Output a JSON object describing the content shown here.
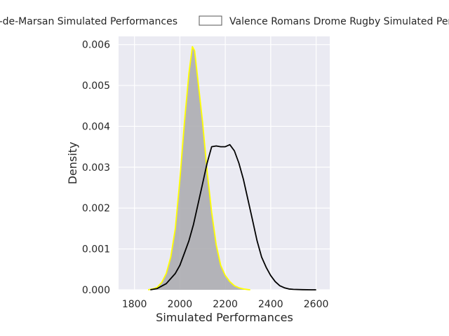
{
  "chart_data": {
    "type": "area",
    "xlabel": "Simulated Performances",
    "ylabel": "Density",
    "xlim": [
      1730,
      2660
    ],
    "ylim": [
      0,
      0.0062
    ],
    "x_ticks": [
      1800,
      2000,
      2200,
      2400,
      2600
    ],
    "x_tick_labels": [
      "1800",
      "2000",
      "2200",
      "2400",
      "2600"
    ],
    "y_ticks": [
      0,
      0.001,
      0.002,
      0.003,
      0.004,
      0.005,
      0.006
    ],
    "y_tick_labels": [
      "0.000",
      "0.001",
      "0.002",
      "0.003",
      "0.004",
      "0.005",
      "0.006"
    ],
    "grid": true,
    "legend_position": "top, above plot",
    "style": {
      "plot_background": "#eaeaf2",
      "grid_color": "#ffffff",
      "fill_color": "#a9a9ae",
      "series1_edge": "#ffff00",
      "series2_edge": "#000000"
    },
    "series": [
      {
        "name": "Stade Montois Mont-de-Marsan Simulated Performances",
        "legend_text": "t-de-Marsan Simulated Performances",
        "filled": true,
        "edge_color": "#ffff00",
        "x": [
          1860,
          1880,
          1900,
          1920,
          1940,
          1960,
          1980,
          2000,
          2020,
          2040,
          2055,
          2065,
          2080,
          2100,
          2120,
          2140,
          2160,
          2180,
          2200,
          2220,
          2240,
          2260,
          2280,
          2300,
          2310
        ],
        "y": [
          0,
          2e-05,
          6e-05,
          0.00018,
          0.0004,
          0.0008,
          0.0015,
          0.0027,
          0.0041,
          0.0053,
          0.00595,
          0.00585,
          0.0051,
          0.0041,
          0.0029,
          0.0019,
          0.0011,
          0.0006,
          0.00035,
          0.0002,
          0.0001,
          5e-05,
          2e-05,
          5e-06,
          0
        ]
      },
      {
        "name": "Valence Romans Drome Rugby Simulated Performances",
        "legend_text": "Valence Romans Drome Rugby Simulated Per",
        "filled": false,
        "edge_color": "#000000",
        "x": [
          1870,
          1900,
          1940,
          1980,
          2000,
          2020,
          2040,
          2060,
          2080,
          2100,
          2120,
          2140,
          2160,
          2180,
          2200,
          2220,
          2240,
          2260,
          2280,
          2300,
          2320,
          2340,
          2360,
          2380,
          2400,
          2420,
          2440,
          2460,
          2480,
          2500,
          2540,
          2580,
          2600
        ],
        "y": [
          0,
          3e-05,
          0.00015,
          0.0004,
          0.0006,
          0.0009,
          0.0012,
          0.0016,
          0.0021,
          0.0026,
          0.0031,
          0.0035,
          0.00352,
          0.0035,
          0.0035,
          0.00355,
          0.0034,
          0.0031,
          0.0027,
          0.0022,
          0.0017,
          0.0012,
          0.0008,
          0.00055,
          0.00035,
          0.0002,
          0.0001,
          5e-05,
          2e-05,
          1e-05,
          3e-06,
          0,
          0
        ]
      }
    ]
  }
}
